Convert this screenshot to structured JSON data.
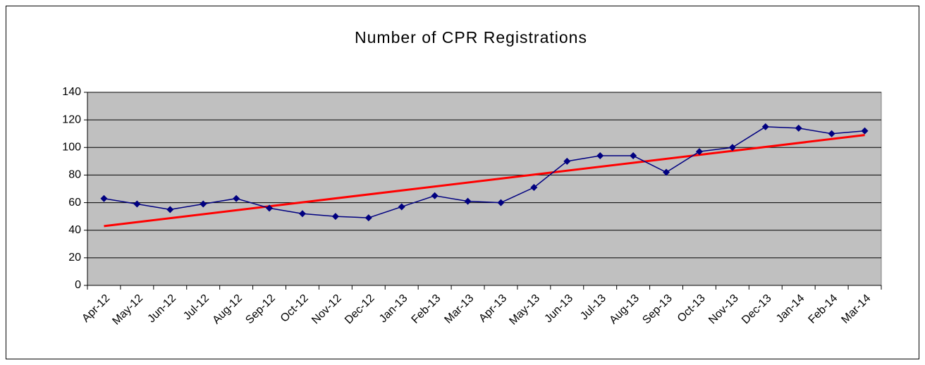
{
  "chart_data": {
    "type": "line",
    "title": "Number of CPR Registrations",
    "categories": [
      "Apr-12",
      "May-12",
      "Jun-12",
      "Jul-12",
      "Aug-12",
      "Sep-12",
      "Oct-12",
      "Nov-12",
      "Dec-12",
      "Jan-13",
      "Feb-13",
      "Mar-13",
      "Apr-13",
      "May-13",
      "Jun-13",
      "Jul-13",
      "Aug-13",
      "Sep-13",
      "Oct-13",
      "Nov-13",
      "Dec-13",
      "Jan-14",
      "Feb-14",
      "Mar-14"
    ],
    "values": [
      63,
      59,
      55,
      59,
      63,
      56,
      52,
      50,
      49,
      57,
      65,
      61,
      60,
      71,
      90,
      94,
      94,
      82,
      97,
      100,
      115,
      114,
      110,
      112
    ],
    "color": "#000080",
    "trendline": {
      "values": [
        43,
        109
      ],
      "color": "#ff0000"
    },
    "ylim": [
      0,
      140
    ],
    "yticks": [
      0,
      20,
      40,
      60,
      80,
      100,
      120,
      140
    ],
    "grid": true,
    "plot_background": "#c0c0c0"
  }
}
